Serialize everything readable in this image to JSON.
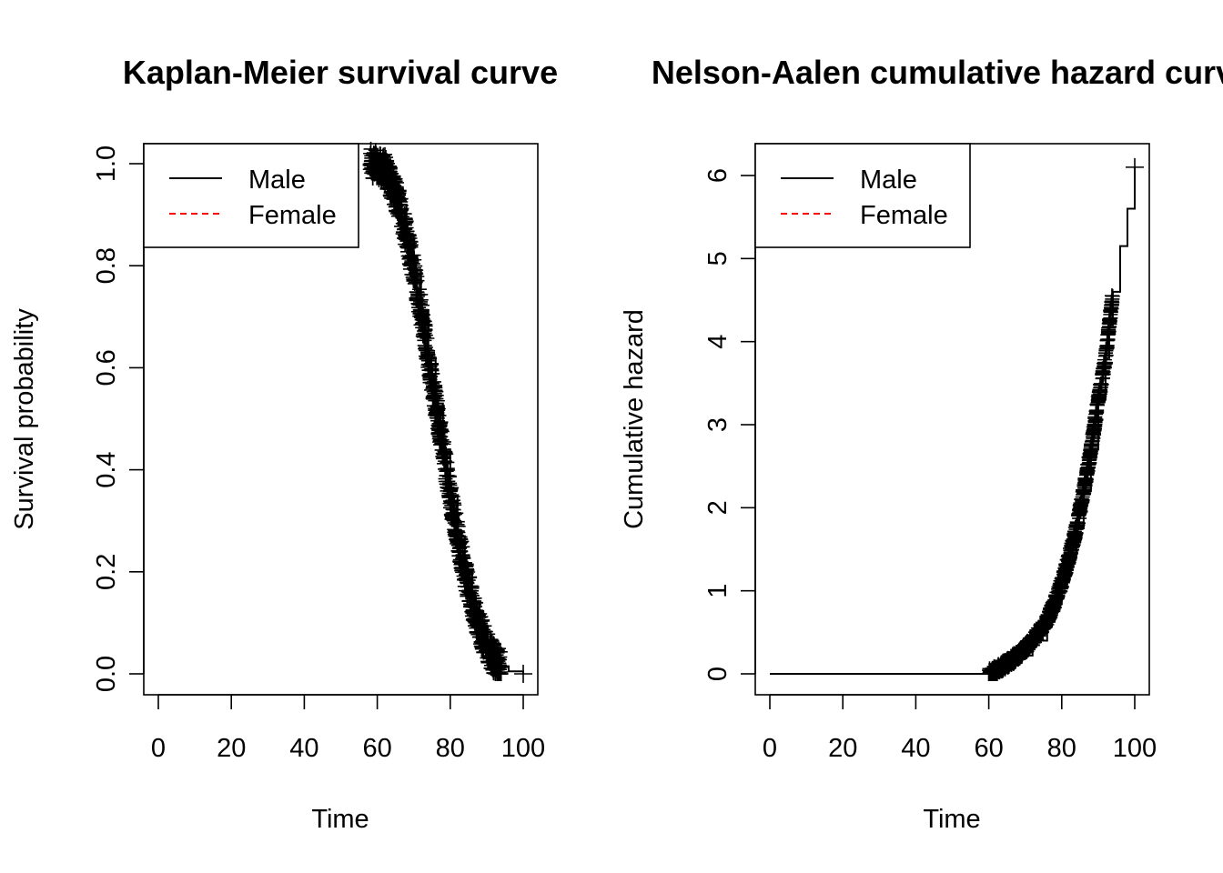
{
  "chart_data": [
    {
      "type": "line",
      "title": "Kaplan-Meier survival curve",
      "xlabel": "Time",
      "ylabel": "Survival probability",
      "xlim": [
        0,
        100
      ],
      "ylim": [
        0,
        1
      ],
      "x_ticks": [
        "0",
        "20",
        "40",
        "60",
        "80",
        "100"
      ],
      "y_ticks": [
        "0.0",
        "0.2",
        "0.4",
        "0.6",
        "0.8",
        "1.0"
      ],
      "legend": {
        "placement": "top-left",
        "entries": [
          "Male",
          "Female"
        ]
      },
      "series": [
        {
          "name": "Male",
          "color": "#000000",
          "style": "solid",
          "x": [
            60,
            62,
            64,
            66,
            68,
            70,
            72,
            74,
            76,
            78,
            80,
            82,
            84,
            86,
            88,
            90,
            92,
            94,
            96,
            100
          ],
          "values": [
            1.0,
            0.99,
            0.96,
            0.92,
            0.86,
            0.79,
            0.71,
            0.62,
            0.53,
            0.44,
            0.35,
            0.27,
            0.2,
            0.14,
            0.09,
            0.055,
            0.03,
            0.015,
            0.005,
            0.0
          ]
        },
        {
          "name": "Female",
          "color": "#ff0000",
          "style": "dashed",
          "x": [],
          "values": []
        }
      ],
      "censor_marks": true,
      "grid": false
    },
    {
      "type": "line",
      "title": "Nelson-Aalen cumulative hazard curve",
      "xlabel": "Time",
      "ylabel": "Cumulative hazard",
      "xlim": [
        0,
        100
      ],
      "ylim": [
        0,
        6.1
      ],
      "x_ticks": [
        "0",
        "20",
        "40",
        "60",
        "80",
        "100"
      ],
      "y_ticks": [
        "0",
        "1",
        "2",
        "3",
        "4",
        "5",
        "6"
      ],
      "legend": {
        "placement": "top-left",
        "entries": [
          "Male",
          "Female"
        ]
      },
      "series": [
        {
          "name": "Male",
          "color": "#000000",
          "style": "solid",
          "x": [
            0,
            57,
            60,
            64,
            68,
            72,
            76,
            78,
            80,
            82,
            84,
            86,
            88,
            90,
            92,
            93,
            94,
            96,
            98,
            100
          ],
          "values": [
            0,
            0,
            0.0,
            0.1,
            0.22,
            0.4,
            0.65,
            0.85,
            1.1,
            1.4,
            1.75,
            2.2,
            2.7,
            3.3,
            3.8,
            4.2,
            4.6,
            5.15,
            5.6,
            6.1
          ]
        },
        {
          "name": "Female",
          "color": "#ff0000",
          "style": "dashed",
          "x": [],
          "values": []
        }
      ],
      "censor_marks": true,
      "grid": false
    }
  ]
}
